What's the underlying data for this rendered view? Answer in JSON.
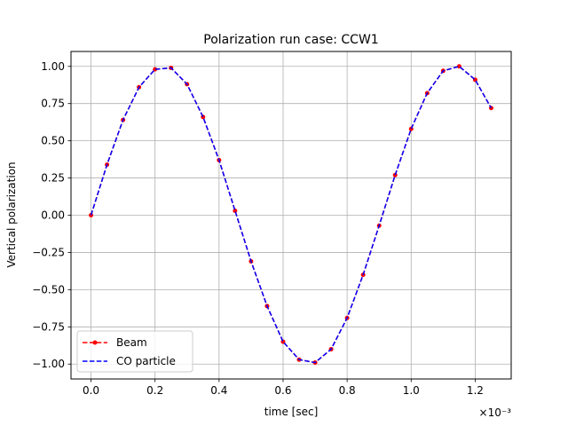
{
  "chart_data": {
    "type": "line",
    "title": "Polarization run case: CCW1",
    "xlabel": "time [sec]",
    "ylabel": "Vertical polarization",
    "x_offset_text": "×10⁻³",
    "xlim": [
      -6.25e-05,
      0.0013125
    ],
    "ylim": [
      -1.1,
      1.1
    ],
    "xticks": [
      0,
      0.0002,
      0.0004,
      0.0006,
      0.0008,
      0.001,
      0.0012
    ],
    "xtick_labels": [
      "0.0",
      "0.2",
      "0.4",
      "0.6",
      "0.8",
      "1.0",
      "1.2"
    ],
    "yticks": [
      -1.0,
      -0.75,
      -0.5,
      -0.25,
      0.0,
      0.25,
      0.5,
      0.75,
      1.0
    ],
    "ytick_labels": [
      "−1.00",
      "−0.75",
      "−0.50",
      "−0.25",
      "0.00",
      "0.25",
      "0.50",
      "0.75",
      "1.00"
    ],
    "grid": true,
    "legend_position": "lower-left",
    "series": [
      {
        "name": "Beam",
        "color": "#ff0000",
        "style": "dashed",
        "marker": "circle",
        "x": [
          0,
          5e-05,
          0.0001,
          0.00015,
          0.0002,
          0.00025,
          0.0003,
          0.00035,
          0.0004,
          0.00045,
          0.0005,
          0.00055,
          0.0006,
          0.00065,
          0.0007,
          0.00075,
          0.0008,
          0.00085,
          0.0009,
          0.00095,
          0.001,
          0.00105,
          0.0011,
          0.00115,
          0.0012,
          0.00125
        ],
        "y": [
          0.0,
          0.34,
          0.64,
          0.86,
          0.98,
          0.99,
          0.88,
          0.66,
          0.37,
          0.03,
          -0.31,
          -0.61,
          -0.85,
          -0.97,
          -0.99,
          -0.9,
          -0.69,
          -0.4,
          -0.07,
          0.27,
          0.58,
          0.82,
          0.97,
          1.0,
          0.91,
          0.72
        ]
      },
      {
        "name": "CO particle",
        "color": "#0000ff",
        "style": "dashed",
        "marker": "none",
        "x": [
          0,
          5e-05,
          0.0001,
          0.00015,
          0.0002,
          0.00025,
          0.0003,
          0.00035,
          0.0004,
          0.00045,
          0.0005,
          0.00055,
          0.0006,
          0.00065,
          0.0007,
          0.00075,
          0.0008,
          0.00085,
          0.0009,
          0.00095,
          0.001,
          0.00105,
          0.0011,
          0.00115,
          0.0012,
          0.00125
        ],
        "y": [
          0.0,
          0.34,
          0.64,
          0.86,
          0.98,
          0.99,
          0.88,
          0.66,
          0.37,
          0.03,
          -0.31,
          -0.61,
          -0.85,
          -0.97,
          -0.99,
          -0.9,
          -0.69,
          -0.4,
          -0.07,
          0.27,
          0.58,
          0.82,
          0.97,
          1.0,
          0.91,
          0.72
        ]
      }
    ]
  }
}
